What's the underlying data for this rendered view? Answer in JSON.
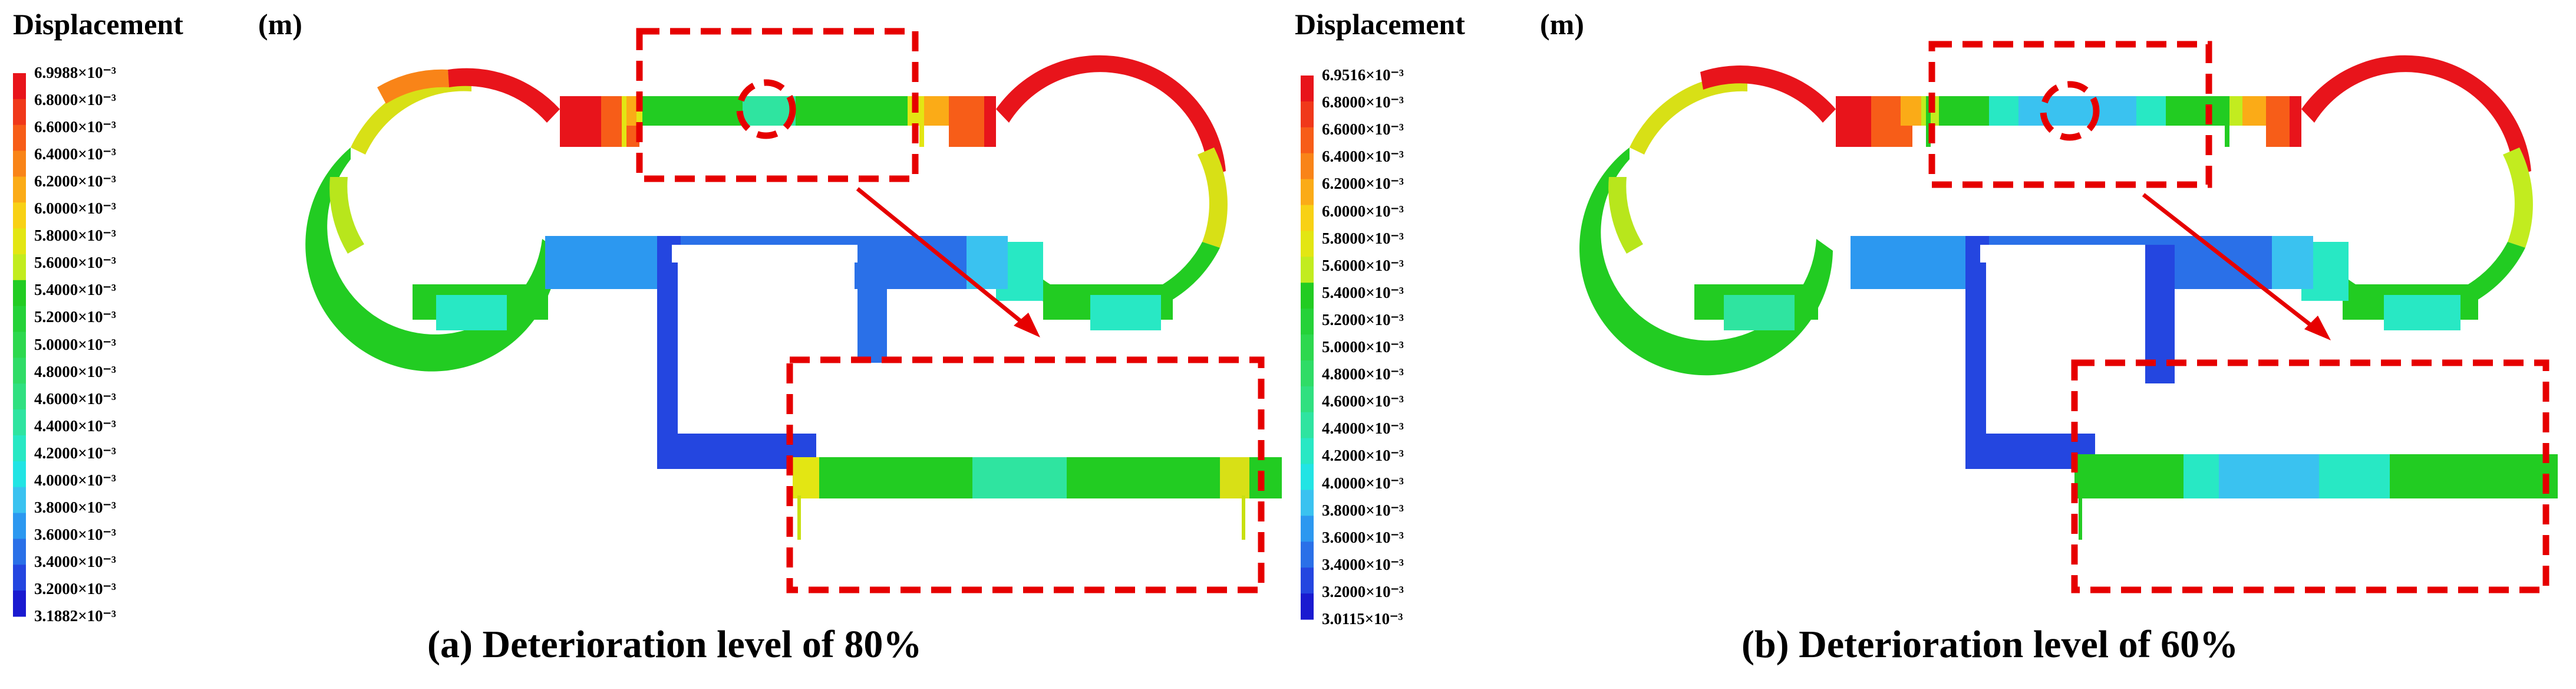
{
  "panels": [
    {
      "legend": {
        "title": "Displacement",
        "unit": "(m)",
        "ticks": [
          "6.9988×10⁻³",
          "6.8000×10⁻³",
          "6.6000×10⁻³",
          "6.4000×10⁻³",
          "6.2000×10⁻³",
          "6.0000×10⁻³",
          "5.8000×10⁻³",
          "5.6000×10⁻³",
          "5.4000×10⁻³",
          "5.2000×10⁻³",
          "5.0000×10⁻³",
          "4.8000×10⁻³",
          "4.6000×10⁻³",
          "4.4000×10⁻³",
          "4.2000×10⁻³",
          "4.0000×10⁻³",
          "3.8000×10⁻³",
          "3.6000×10⁻³",
          "3.4000×10⁻³",
          "3.2000×10⁻³",
          "3.1882×10⁻³"
        ]
      },
      "caption": "(a) Deterioration level of 80%"
    },
    {
      "legend": {
        "title": "Displacement",
        "unit": "(m)",
        "ticks": [
          "6.9516×10⁻³",
          "6.8000×10⁻³",
          "6.6000×10⁻³",
          "6.4000×10⁻³",
          "6.2000×10⁻³",
          "6.0000×10⁻³",
          "5.8000×10⁻³",
          "5.6000×10⁻³",
          "5.4000×10⁻³",
          "5.2000×10⁻³",
          "5.0000×10⁻³",
          "4.8000×10⁻³",
          "4.6000×10⁻³",
          "4.4000×10⁻³",
          "4.2000×10⁻³",
          "4.0000×10⁻³",
          "3.8000×10⁻³",
          "3.6000×10⁻³",
          "3.4000×10⁻³",
          "3.2000×10⁻³",
          "3.0115×10⁻³"
        ]
      },
      "caption": "(b) Deterioration level of 60%"
    }
  ],
  "colors": {
    "legend_bands": [
      "#e8141b",
      "#f0381a",
      "#f75d18",
      "#f98418",
      "#fbab17",
      "#f8d115",
      "#e3e613",
      "#c2ec1f",
      "#22cc22",
      "#25d238",
      "#2dd84e",
      "#2fdc66",
      "#30e080",
      "#2fe4a0",
      "#28e8c4",
      "#22e4e4",
      "#3ac2f0",
      "#2c98f0",
      "#2a70e8",
      "#2446e0",
      "#1a1ad0"
    ],
    "annotation": "#e60000"
  }
}
